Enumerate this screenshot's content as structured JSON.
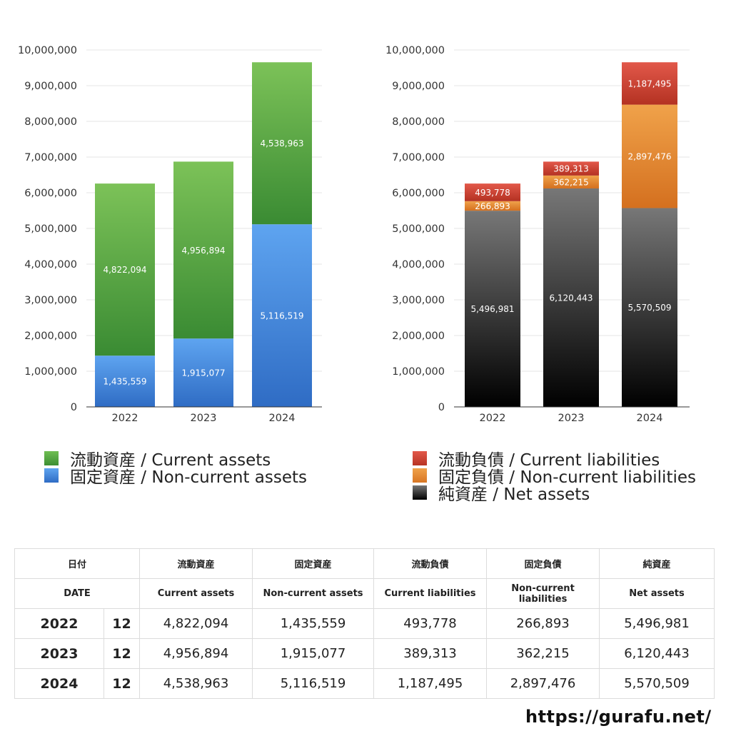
{
  "chart_data": [
    {
      "type": "bar",
      "stacked": true,
      "title": "",
      "categories": [
        "2022",
        "2023",
        "2024"
      ],
      "ylim": [
        0,
        10000000
      ],
      "yticks": [
        0,
        1000000,
        2000000,
        3000000,
        4000000,
        5000000,
        6000000,
        7000000,
        8000000,
        9000000,
        10000000
      ],
      "series": [
        {
          "name": "固定資産 / Non-current assets",
          "values": [
            1435559,
            1915077,
            5116519
          ],
          "color_top": "#5ea4f0",
          "color_bottom": "#2f6cc4"
        },
        {
          "name": "流動資産 / Current assets",
          "values": [
            4822094,
            4956894,
            4538963
          ],
          "color_top": "#7cc258",
          "color_bottom": "#3a8b33"
        }
      ]
    },
    {
      "type": "bar",
      "stacked": true,
      "title": "",
      "categories": [
        "2022",
        "2023",
        "2024"
      ],
      "ylim": [
        0,
        10000000
      ],
      "yticks": [
        0,
        1000000,
        2000000,
        3000000,
        4000000,
        5000000,
        6000000,
        7000000,
        8000000,
        9000000,
        10000000
      ],
      "series": [
        {
          "name": "純資産 / Net assets",
          "values": [
            5496981,
            6120443,
            5570509
          ],
          "color_top": "#777777",
          "color_bottom": "#000000"
        },
        {
          "name": "固定負債 / Non-current liabilities",
          "values": [
            266893,
            362215,
            2897476
          ],
          "color_top": "#f0a24a",
          "color_bottom": "#d4701f"
        },
        {
          "name": "流動負債 / Current liabilities",
          "values": [
            493778,
            389313,
            1187495
          ],
          "color_top": "#e2584a",
          "color_bottom": "#b43222"
        }
      ]
    }
  ],
  "legend_left": [
    {
      "label": "流動資産 / Current assets",
      "swatch": "ca"
    },
    {
      "label": "固定資産 / Non-current assets",
      "swatch": "nca"
    }
  ],
  "legend_right": [
    {
      "label": "流動負債 / Current liabilities",
      "swatch": "cl"
    },
    {
      "label": "固定負債 / Non-current liabilities",
      "swatch": "ncl"
    },
    {
      "label": "純資産 / Net assets",
      "swatch": "na"
    }
  ],
  "table": {
    "header_jp": [
      "日付",
      "流動資産",
      "固定資産",
      "流動負債",
      "固定負債",
      "純資産"
    ],
    "header_en": [
      "DATE",
      "Current assets",
      "Non-current assets",
      "Current liabilities",
      "Non-current liabilities",
      "Net assets"
    ],
    "rows": [
      {
        "year": "2022",
        "month": "12",
        "values": [
          "4,822,094",
          "1,435,559",
          "493,778",
          "266,893",
          "5,496,981"
        ]
      },
      {
        "year": "2023",
        "month": "12",
        "values": [
          "4,956,894",
          "1,915,077",
          "389,313",
          "362,215",
          "6,120,443"
        ]
      },
      {
        "year": "2024",
        "month": "12",
        "values": [
          "4,538,963",
          "5,116,519",
          "1,187,495",
          "2,897,476",
          "5,570,509"
        ]
      }
    ]
  },
  "site_url": "https://gurafu.net/"
}
